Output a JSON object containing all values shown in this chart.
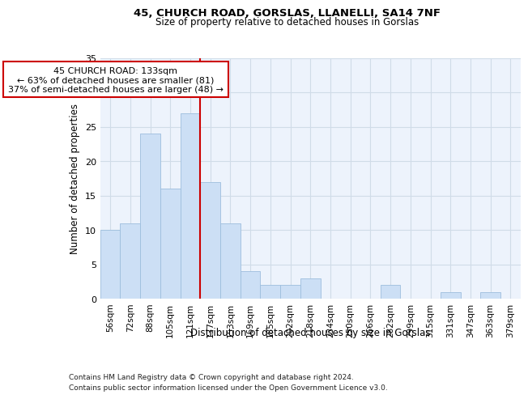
{
  "title1": "45, CHURCH ROAD, GORSLAS, LLANELLI, SA14 7NF",
  "title2": "Size of property relative to detached houses in Gorslas",
  "xlabel": "Distribution of detached houses by size in Gorslas",
  "ylabel": "Number of detached properties",
  "footer1": "Contains HM Land Registry data © Crown copyright and database right 2024.",
  "footer2": "Contains public sector information licensed under the Open Government Licence v3.0.",
  "bin_labels": [
    "56sqm",
    "72sqm",
    "88sqm",
    "105sqm",
    "121sqm",
    "137sqm",
    "153sqm",
    "169sqm",
    "185sqm",
    "202sqm",
    "218sqm",
    "234sqm",
    "250sqm",
    "266sqm",
    "282sqm",
    "299sqm",
    "315sqm",
    "331sqm",
    "347sqm",
    "363sqm",
    "379sqm"
  ],
  "bar_values": [
    10,
    11,
    24,
    16,
    27,
    17,
    11,
    4,
    2,
    2,
    3,
    0,
    0,
    0,
    2,
    0,
    0,
    1,
    0,
    1,
    0
  ],
  "bar_color": "#ccdff5",
  "bar_edge_color": "#9dbedd",
  "grid_color": "#d0dce8",
  "property_line_x": 4.5,
  "property_line_color": "#cc0000",
  "annotation_line1": "45 CHURCH ROAD: 133sqm",
  "annotation_line2": "← 63% of detached houses are smaller (81)",
  "annotation_line3": "37% of semi-detached houses are larger (48) →",
  "annotation_box_color": "#cc0000",
  "ylim": [
    0,
    35
  ],
  "yticks": [
    0,
    5,
    10,
    15,
    20,
    25,
    30,
    35
  ],
  "background_color": "#edf3fc"
}
